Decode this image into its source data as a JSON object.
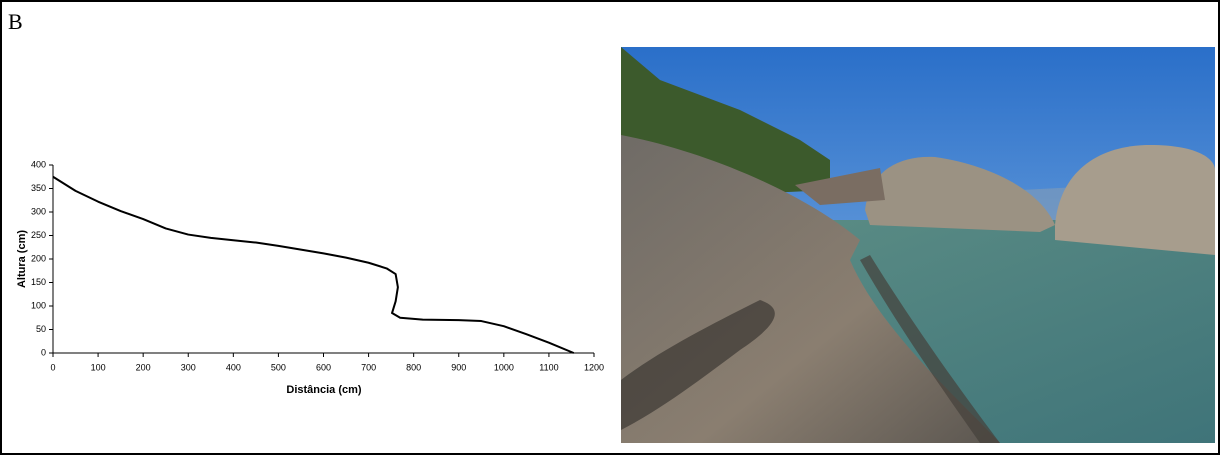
{
  "panel_label": "B",
  "chart_data": {
    "type": "line",
    "x_label": "Distância (cm)",
    "y_label": "Altura (cm)",
    "x": [
      0,
      50,
      100,
      150,
      200,
      250,
      300,
      350,
      400,
      450,
      500,
      550,
      600,
      650,
      700,
      740,
      760,
      765,
      760,
      752,
      770,
      820,
      900,
      950,
      1000,
      1050,
      1100,
      1155
    ],
    "values": [
      375,
      345,
      322,
      302,
      285,
      265,
      252,
      245,
      240,
      235,
      228,
      220,
      212,
      203,
      192,
      180,
      168,
      140,
      110,
      85,
      75,
      71,
      70,
      68,
      57,
      40,
      22,
      0
    ],
    "color": "#000000",
    "xlim": [
      0,
      1200
    ],
    "xticks": [
      0,
      100,
      200,
      300,
      400,
      500,
      600,
      700,
      800,
      900,
      1000,
      1100,
      1200
    ],
    "ylim": [
      0,
      400
    ],
    "yticks": [
      0,
      50,
      100,
      150,
      200,
      250,
      300,
      350,
      400
    ]
  }
}
